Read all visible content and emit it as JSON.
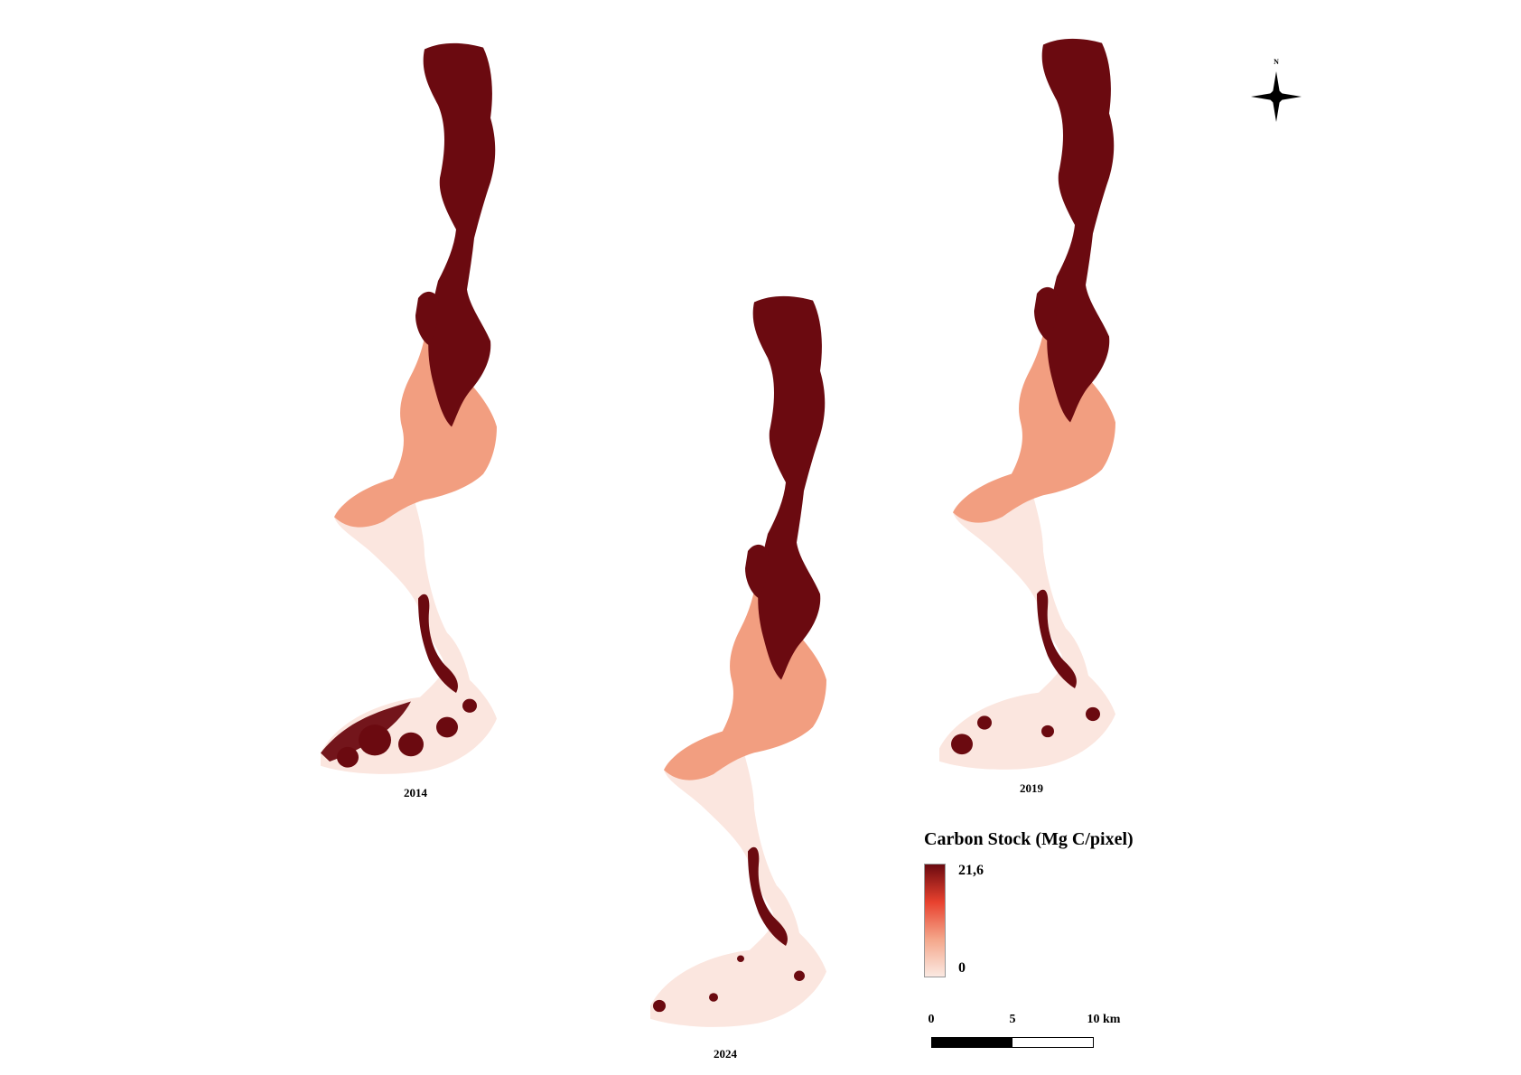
{
  "panels": [
    {
      "year": "2014"
    },
    {
      "year": "2019"
    },
    {
      "year": "2024"
    }
  ],
  "legend": {
    "title": "Carbon Stock (Mg C/pixel)",
    "max_label": "21,6",
    "min_label": "0",
    "ramp_colors": [
      "#fbe9e2",
      "#f4a68a",
      "#e8412e",
      "#6b0a10"
    ]
  },
  "scale_bar": {
    "tick_0": "0",
    "tick_mid": "5",
    "tick_end": "10 km"
  },
  "north_arrow": {
    "label": "N",
    "icon": "compass-star-icon"
  },
  "colors": {
    "high": "#6b0a10",
    "medium": "#f29e80",
    "low": "#f9dcd2",
    "very_low": "#fbe6df"
  }
}
